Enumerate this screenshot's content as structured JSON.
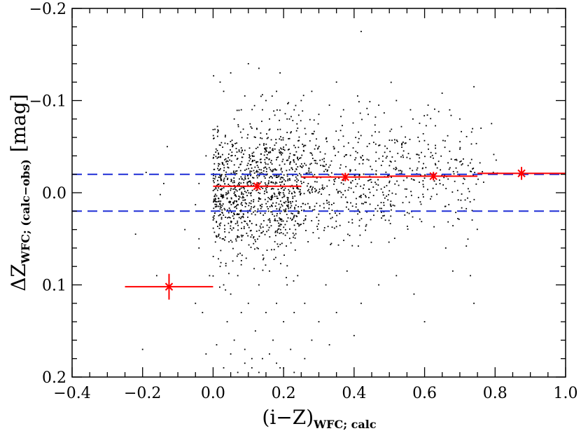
{
  "chart_data": {
    "type": "scatter",
    "title": "",
    "xlabel": {
      "main": "(i−Z)",
      "sub": "WFC; calc"
    },
    "ylabel": {
      "main": "ΔZ",
      "sub": "WFC; (calc−obs)",
      "unit": "[mag]"
    },
    "xlim": [
      -0.4,
      1.0
    ],
    "ylim": [
      0.2,
      -0.2
    ],
    "y_inverted": true,
    "xticks": [
      {
        "value": -0.4,
        "label": "−0.4"
      },
      {
        "value": -0.2,
        "label": "−0.2"
      },
      {
        "value": 0.0,
        "label": "0.0"
      },
      {
        "value": 0.2,
        "label": "0.2"
      },
      {
        "value": 0.4,
        "label": "0.4"
      },
      {
        "value": 0.6,
        "label": "0.6"
      },
      {
        "value": 0.8,
        "label": "0.8"
      },
      {
        "value": 1.0,
        "label": "1.0"
      }
    ],
    "yticks": [
      {
        "value": -0.2,
        "label": "−0.2"
      },
      {
        "value": -0.1,
        "label": "−0.1"
      },
      {
        "value": 0.0,
        "label": "0.0"
      },
      {
        "value": 0.1,
        "label": "0.1"
      },
      {
        "value": 0.2,
        "label": "0.2"
      }
    ],
    "grid": false,
    "reference_lines": [
      {
        "y": -0.02,
        "color": "#1f2fd6",
        "style": "dashed"
      },
      {
        "y": 0.02,
        "color": "#1f2fd6",
        "style": "dashed"
      }
    ],
    "binned_means": {
      "color": "#ff0000",
      "points": [
        {
          "x": -0.125,
          "x_halfwidth": 0.125,
          "y": 0.102,
          "y_err": 0.014
        },
        {
          "x": 0.125,
          "x_halfwidth": 0.125,
          "y": -0.007,
          "y_err": 0.003
        },
        {
          "x": 0.375,
          "x_halfwidth": 0.125,
          "y": -0.017,
          "y_err": 0.004
        },
        {
          "x": 0.625,
          "x_halfwidth": 0.125,
          "y": -0.018,
          "y_err": 0.004
        },
        {
          "x": 0.875,
          "x_halfwidth": 0.125,
          "y": -0.021,
          "y_err": 0.007
        }
      ]
    },
    "scatter_series": {
      "color": "#000000",
      "points": [
        [
          -0.04,
          -0.01
        ],
        [
          -0.05,
          0.013
        ],
        [
          -0.05,
          0.12
        ],
        [
          -0.04,
          0.05
        ],
        [
          -0.04,
          0.06
        ],
        [
          -0.03,
          0.13
        ],
        [
          -0.02,
          -0.04
        ],
        [
          -0.01,
          0.09
        ],
        [
          -0.02,
          0.175
        ],
        [
          -0.19,
          -0.022
        ],
        [
          -0.14,
          -0.01
        ],
        [
          -0.13,
          -0.05
        ],
        [
          -0.15,
          0.002
        ],
        [
          -0.08,
          0.04
        ],
        [
          -0.22,
          0.045
        ],
        [
          -0.16,
          0.09
        ],
        [
          -0.2,
          0.17
        ],
        [
          0.02,
          -0.12
        ],
        [
          0.03,
          -0.11
        ],
        [
          0.05,
          -0.13
        ],
        [
          0.06,
          -0.08
        ],
        [
          0.08,
          -0.09
        ],
        [
          0.09,
          -0.105
        ],
        [
          0.1,
          -0.14
        ],
        [
          0.11,
          -0.07
        ],
        [
          0.12,
          -0.06
        ],
        [
          0.13,
          -0.135
        ],
        [
          0.14,
          -0.09
        ],
        [
          0.15,
          -0.1
        ],
        [
          0.16,
          -0.08
        ],
        [
          0.18,
          -0.11
        ],
        [
          0.19,
          -0.13
        ],
        [
          0.21,
          -0.08
        ],
        [
          0.22,
          -0.065
        ],
        [
          0.23,
          -0.09
        ],
        [
          0.24,
          -0.07
        ],
        [
          0.25,
          -0.1
        ],
        [
          0.28,
          -0.11
        ],
        [
          0.3,
          -0.085
        ],
        [
          0.33,
          -0.095
        ],
        [
          0.35,
          -0.12
        ],
        [
          0.37,
          -0.09
        ],
        [
          0.41,
          -0.105
        ],
        [
          0.42,
          -0.175
        ],
        [
          0.44,
          -0.085
        ],
        [
          0.47,
          -0.095
        ],
        [
          0.52,
          -0.1
        ],
        [
          0.56,
          -0.09
        ],
        [
          0.61,
          -0.095
        ],
        [
          0.64,
          -0.088
        ],
        [
          0.7,
          -0.08
        ],
        [
          0.74,
          -0.115
        ],
        [
          0.76,
          -0.07
        ],
        [
          0.79,
          -0.075
        ],
        [
          0.02,
          0.08
        ],
        [
          0.03,
          0.1
        ],
        [
          0.04,
          0.14
        ],
        [
          0.05,
          0.11
        ],
        [
          0.06,
          0.16
        ],
        [
          0.07,
          0.09
        ],
        [
          0.08,
          0.13
        ],
        [
          0.09,
          0.17
        ],
        [
          0.1,
          0.12
        ],
        [
          0.11,
          0.19
        ],
        [
          0.12,
          0.15
        ],
        [
          0.13,
          0.1
        ],
        [
          0.14,
          0.18
        ],
        [
          0.15,
          0.13
        ],
        [
          0.16,
          0.085
        ],
        [
          0.17,
          0.16
        ],
        [
          0.18,
          0.12
        ],
        [
          0.19,
          0.19
        ],
        [
          0.2,
          0.14
        ],
        [
          0.21,
          0.1
        ],
        [
          0.22,
          0.17
        ],
        [
          0.23,
          0.13
        ],
        [
          0.24,
          0.09
        ],
        [
          0.26,
          0.12
        ],
        [
          0.28,
          0.16
        ],
        [
          0.3,
          0.14
        ],
        [
          0.32,
          0.1
        ],
        [
          0.35,
          0.13
        ],
        [
          0.38,
          0.085
        ],
        [
          0.42,
          0.12
        ],
        [
          0.47,
          0.1
        ],
        [
          0.52,
          0.09
        ],
        [
          0.57,
          0.11
        ],
        [
          0.6,
          0.14
        ],
        [
          0.66,
          0.06
        ],
        [
          0.73,
          0.09
        ],
        [
          0.74,
          0.12
        ],
        [
          0.68,
          0.085
        ],
        [
          0.01,
          0.165
        ],
        [
          0.03,
          0.19
        ],
        [
          0.05,
          0.175
        ],
        [
          0.07,
          0.195
        ],
        [
          0.09,
          0.185
        ],
        [
          0.11,
          0.18
        ],
        [
          0.13,
          0.195
        ],
        [
          0.16,
          0.175
        ],
        [
          0.18,
          0.185
        ],
        [
          0.2,
          0.19
        ],
        [
          0.23,
          0.195
        ],
        [
          0.26,
          0.18
        ],
        [
          0.33,
          0.165
        ],
        [
          0.4,
          0.155
        ]
      ],
      "density_regions": [
        {
          "x": [
            0.0,
            0.25
          ],
          "y_center": -0.005,
          "y_sd": 0.035,
          "count": 1050
        },
        {
          "x": [
            0.25,
            0.5
          ],
          "y_center": -0.015,
          "y_sd": 0.032,
          "count": 380
        },
        {
          "x": [
            0.5,
            0.75
          ],
          "y_center": -0.02,
          "y_sd": 0.03,
          "count": 230
        },
        {
          "x": [
            0.75,
            0.83
          ],
          "y_center": -0.025,
          "y_sd": 0.01,
          "count": 8
        }
      ]
    }
  }
}
